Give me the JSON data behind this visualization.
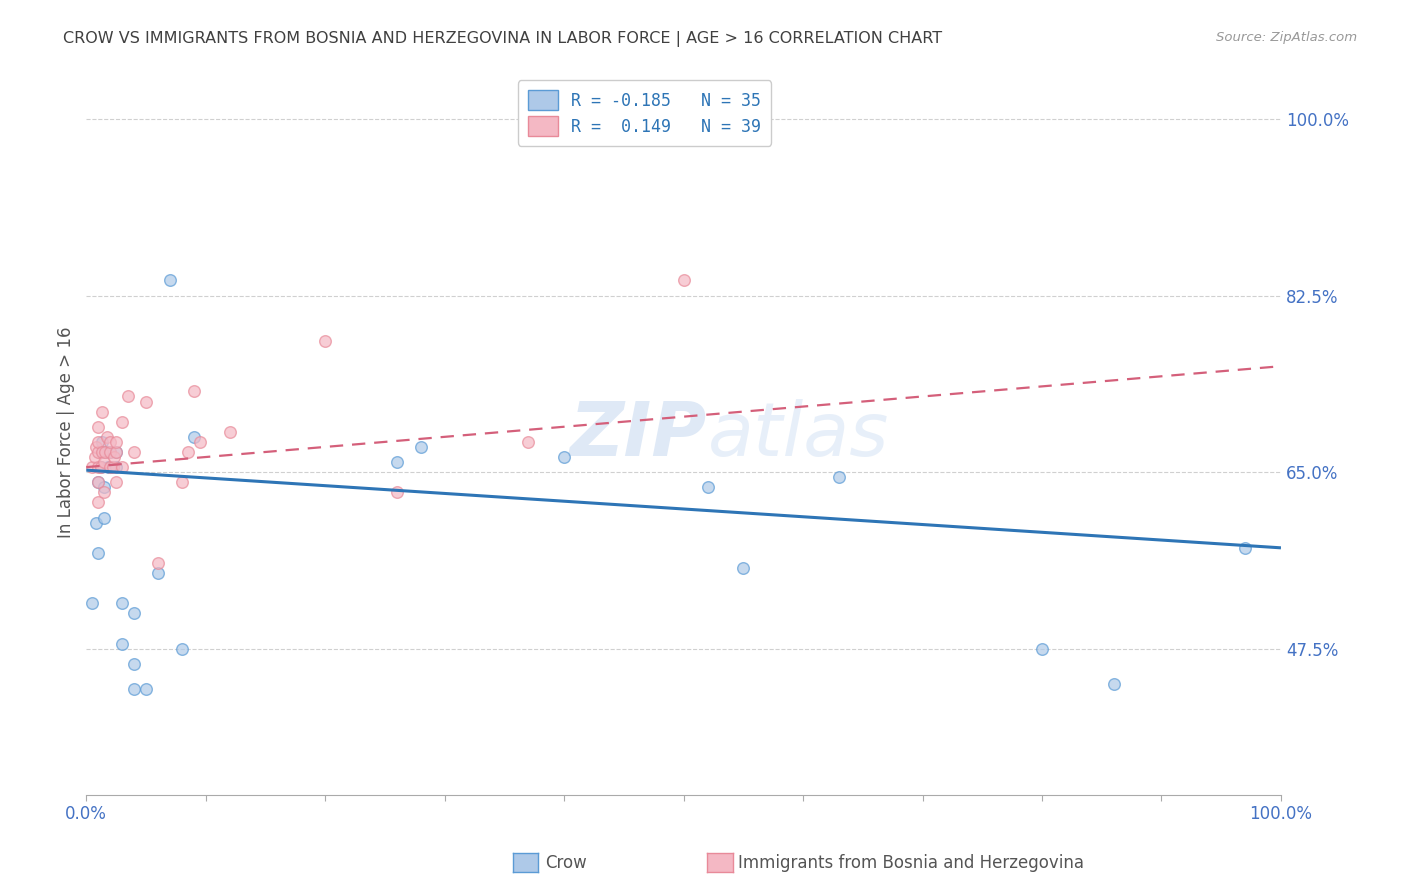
{
  "title": "CROW VS IMMIGRANTS FROM BOSNIA AND HERZEGOVINA IN LABOR FORCE | AGE > 16 CORRELATION CHART",
  "source": "Source: ZipAtlas.com",
  "ylabel": "In Labor Force | Age > 16",
  "yticklabels_right": [
    "47.5%",
    "65.0%",
    "82.5%",
    "100.0%"
  ],
  "xlim": [
    0.0,
    1.0
  ],
  "ylim": [
    0.33,
    1.05
  ],
  "yticks_right": [
    0.475,
    0.65,
    0.825,
    1.0
  ],
  "xticks_minor": [
    0.1,
    0.2,
    0.3,
    0.4,
    0.5,
    0.6,
    0.7,
    0.8,
    0.9
  ],
  "legend_crow_r": "-0.185",
  "legend_crow_n": "35",
  "legend_bosnia_r": "0.149",
  "legend_bosnia_n": "39",
  "crow_color": "#aec9e8",
  "crow_edge_color": "#5b9bd5",
  "crow_line_color": "#2e75b6",
  "bosnia_color": "#f4b8c4",
  "bosnia_edge_color": "#e88a99",
  "bosnia_line_color": "#d45f7a",
  "watermark": "ZIPatlas",
  "crow_points_x": [
    0.005,
    0.008,
    0.01,
    0.01,
    0.012,
    0.013,
    0.013,
    0.015,
    0.015,
    0.018,
    0.018,
    0.02,
    0.02,
    0.02,
    0.025,
    0.025,
    0.03,
    0.03,
    0.04,
    0.04,
    0.04,
    0.05,
    0.06,
    0.07,
    0.08,
    0.09,
    0.26,
    0.28,
    0.4,
    0.52,
    0.55,
    0.63,
    0.8,
    0.86,
    0.97
  ],
  "crow_points_y": [
    0.52,
    0.6,
    0.57,
    0.64,
    0.655,
    0.67,
    0.68,
    0.605,
    0.635,
    0.655,
    0.67,
    0.655,
    0.67,
    0.655,
    0.655,
    0.67,
    0.48,
    0.52,
    0.435,
    0.46,
    0.51,
    0.435,
    0.55,
    0.84,
    0.475,
    0.685,
    0.66,
    0.675,
    0.665,
    0.635,
    0.555,
    0.645,
    0.475,
    0.44,
    0.575
  ],
  "bosnia_points_x": [
    0.005,
    0.007,
    0.008,
    0.01,
    0.01,
    0.01,
    0.01,
    0.01,
    0.01,
    0.012,
    0.013,
    0.013,
    0.015,
    0.015,
    0.016,
    0.017,
    0.02,
    0.02,
    0.02,
    0.022,
    0.023,
    0.025,
    0.025,
    0.025,
    0.03,
    0.03,
    0.035,
    0.04,
    0.05,
    0.06,
    0.08,
    0.085,
    0.09,
    0.095,
    0.12,
    0.2,
    0.26,
    0.37,
    0.5
  ],
  "bosnia_points_y": [
    0.655,
    0.665,
    0.675,
    0.62,
    0.64,
    0.655,
    0.67,
    0.68,
    0.695,
    0.655,
    0.67,
    0.71,
    0.63,
    0.66,
    0.67,
    0.685,
    0.655,
    0.67,
    0.68,
    0.655,
    0.665,
    0.64,
    0.67,
    0.68,
    0.655,
    0.7,
    0.725,
    0.67,
    0.72,
    0.56,
    0.64,
    0.67,
    0.73,
    0.68,
    0.69,
    0.78,
    0.63,
    0.68,
    0.84
  ],
  "crow_line_x": [
    0.0,
    1.0
  ],
  "crow_line_y": [
    0.652,
    0.575
  ],
  "bosnia_line_x": [
    0.0,
    1.0
  ],
  "bosnia_line_y": [
    0.655,
    0.755
  ],
  "title_color": "#404040",
  "axis_label_color": "#555555",
  "tick_color": "#4472c4",
  "grid_color": "#d0d0d0",
  "background_color": "#ffffff",
  "legend_fontsize": 12,
  "title_fontsize": 11.5,
  "marker_size": 70,
  "marker_alpha": 0.7
}
